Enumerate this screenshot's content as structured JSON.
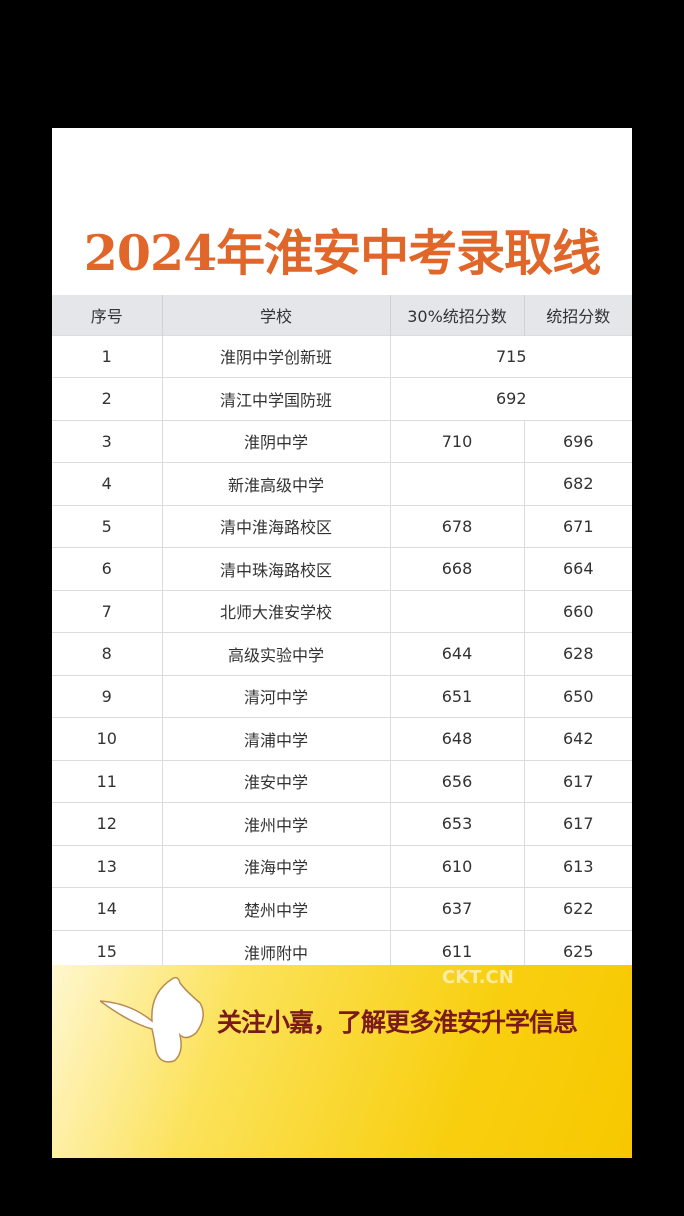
{
  "title": "2024年淮安中考录取线",
  "table": {
    "headers": [
      "序号",
      "学校",
      "30%统招分数",
      "统招分数"
    ],
    "rows": [
      {
        "no": "1",
        "school": "淮阴中学创新班",
        "merged": "715"
      },
      {
        "no": "2",
        "school": "清江中学国防班",
        "merged": "692"
      },
      {
        "no": "3",
        "school": "淮阴中学",
        "s30": "710",
        "s": "696"
      },
      {
        "no": "4",
        "school": "新淮高级中学",
        "s30": "",
        "s": "682"
      },
      {
        "no": "5",
        "school": "清中淮海路校区",
        "s30": "678",
        "s": "671"
      },
      {
        "no": "6",
        "school": "清中珠海路校区",
        "s30": "668",
        "s": "664"
      },
      {
        "no": "7",
        "school": "北师大淮安学校",
        "s30": "",
        "s": "660"
      },
      {
        "no": "8",
        "school": "高级实验中学",
        "s30": "644",
        "s": "628"
      },
      {
        "no": "9",
        "school": "清河中学",
        "s30": "651",
        "s": "650"
      },
      {
        "no": "10",
        "school": "清浦中学",
        "s30": "648",
        "s": "642"
      },
      {
        "no": "11",
        "school": "淮安中学",
        "s30": "656",
        "s": "617"
      },
      {
        "no": "12",
        "school": "淮州中学",
        "s30": "653",
        "s": "617"
      },
      {
        "no": "13",
        "school": "淮海中学",
        "s30": "610",
        "s": "613"
      },
      {
        "no": "14",
        "school": "楚州中学",
        "s30": "637",
        "s": "622"
      },
      {
        "no": "15",
        "school": "淮师附中",
        "s30": "611",
        "s": "625"
      }
    ]
  },
  "footer": {
    "slogan": "关注小嘉，了解更多淮安升学信息",
    "watermark": "CKT.CN",
    "icon": "butterfly-icon"
  },
  "colors": {
    "title": "#e0662a",
    "header_bg": "#e4e6ea",
    "slogan": "#7a1a1a",
    "footer": "#f8cf10"
  }
}
